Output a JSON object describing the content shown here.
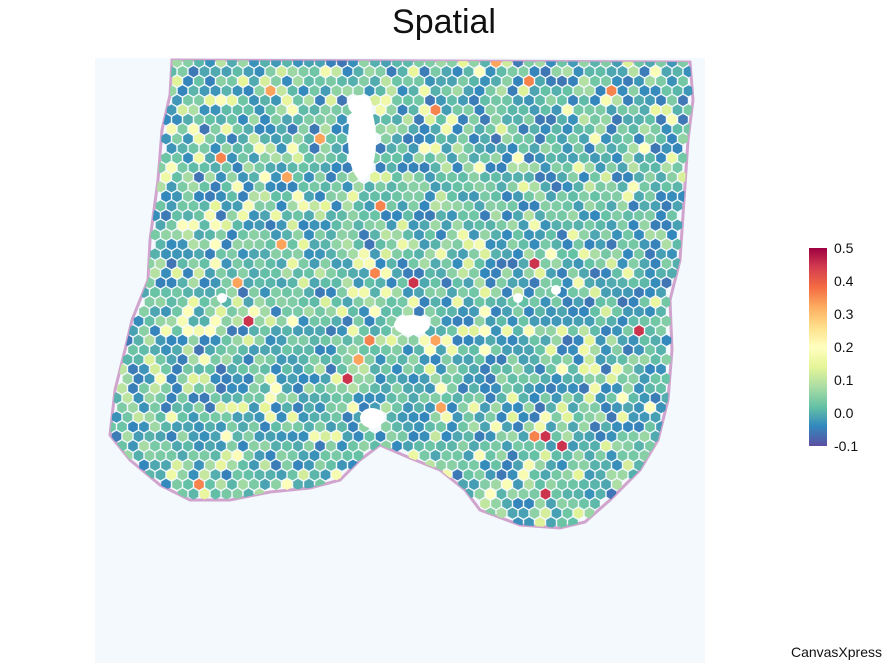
{
  "chart_data": {
    "type": "scatter",
    "subtype": "spatial-hexagon-spot-map",
    "title": "Spatial",
    "xlabel": "",
    "ylabel": "",
    "grid": false,
    "axes_visible": false,
    "background_image": "tissue-section",
    "marker_shape": "hexagon",
    "color_scale": {
      "name": "Spectral (reversed)",
      "min": -0.1,
      "max": 0.5,
      "ticks": [
        "0.5",
        "0.4",
        "0.3",
        "0.2",
        "0.1",
        "0.0",
        "-0.1"
      ],
      "placement": "right",
      "colors": [
        "#5e4fa2",
        "#3288bd",
        "#66c2a5",
        "#abdda4",
        "#e6f598",
        "#ffffbf",
        "#fee08b",
        "#fdae61",
        "#f46d43",
        "#d53e4f",
        "#9e0142"
      ]
    },
    "value_distribution": {
      "bulk_range": [
        -0.1,
        0.15
      ],
      "highlights": [
        0.33,
        0.36,
        0.45
      ]
    }
  },
  "watermark": "CanvasXpress"
}
